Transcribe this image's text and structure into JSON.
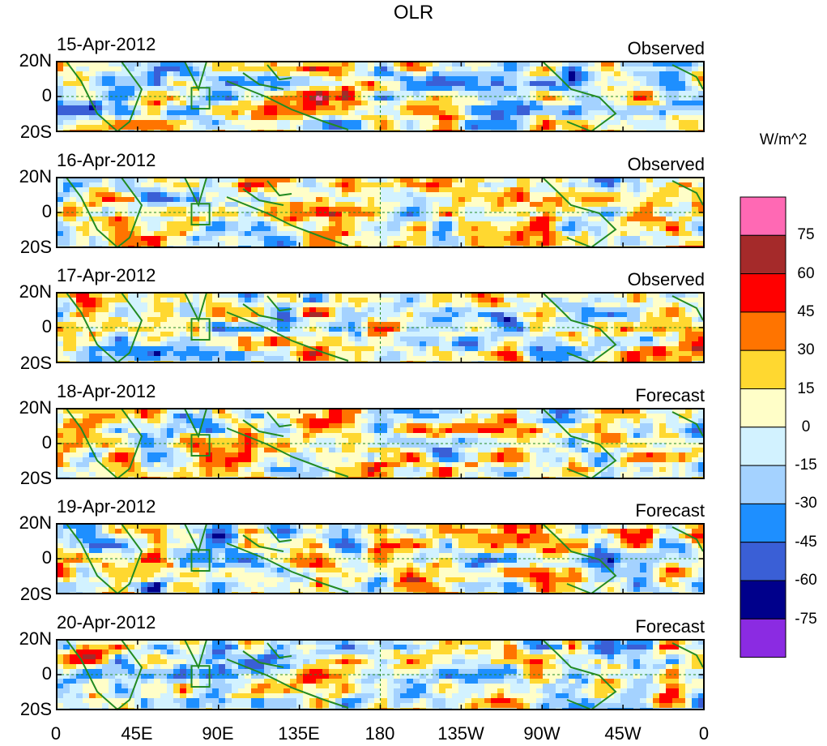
{
  "chart_data": {
    "type": "heatmap",
    "title": "OLR",
    "units": "W/m^2",
    "lat_ticks": [
      "20N",
      "0",
      "20S"
    ],
    "lon_ticks": [
      "0",
      "45E",
      "90E",
      "135E",
      "180",
      "135W",
      "90W",
      "45W",
      "0"
    ],
    "xlim": [
      0,
      360
    ],
    "ylim": [
      -20,
      20
    ],
    "panels": [
      {
        "date": "15-Apr-2012",
        "kind": "Observed"
      },
      {
        "date": "16-Apr-2012",
        "kind": "Observed"
      },
      {
        "date": "17-Apr-2012",
        "kind": "Observed"
      },
      {
        "date": "18-Apr-2012",
        "kind": "Forecast"
      },
      {
        "date": "19-Apr-2012",
        "kind": "Forecast"
      },
      {
        "date": "20-Apr-2012",
        "kind": "Forecast"
      }
    ],
    "colorbar": {
      "colors": [
        "#8b2be2",
        "#00008b",
        "#3a5fd6",
        "#1e8fff",
        "#a4d2ff",
        "#d2f2ff",
        "#fffec8",
        "#ffd830",
        "#ff7400",
        "#ff0000",
        "#a52a2a",
        "#ff69b4"
      ],
      "labels": [
        "-75",
        "-60",
        "-45",
        "-30",
        "-15",
        "0",
        "15",
        "30",
        "45",
        "60",
        "75"
      ]
    },
    "region_box": {
      "lon": [
        75,
        85
      ],
      "lat": [
        -7,
        5
      ]
    },
    "colors": {
      "coast": "#228b22",
      "dash": "#228b22"
    }
  }
}
